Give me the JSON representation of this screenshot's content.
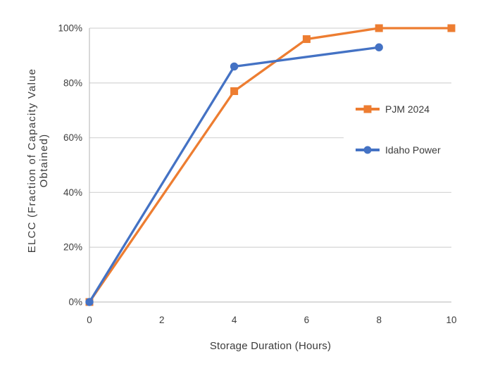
{
  "chart_data": {
    "type": "line",
    "title": "",
    "xlabel": "Storage Duration (Hours)",
    "ylabel": "ELCC (Fraction of Capacity Value Obtained)",
    "ylabel_lines": [
      "ELCC (Fraction of Capacity Value",
      "Obtained)"
    ],
    "xlim": [
      0,
      10
    ],
    "ylim": [
      0,
      100
    ],
    "y_unit": "%",
    "grid": "horizontal-only",
    "legend_position": "inside-right",
    "x_ticks": [
      {
        "value": 0,
        "label": "0"
      },
      {
        "value": 2,
        "label": "2"
      },
      {
        "value": 4,
        "label": "4"
      },
      {
        "value": 6,
        "label": "6"
      },
      {
        "value": 8,
        "label": "8"
      },
      {
        "value": 10,
        "label": "10"
      }
    ],
    "y_ticks": [
      {
        "value": 0,
        "label": "0%"
      },
      {
        "value": 20,
        "label": "20%"
      },
      {
        "value": 40,
        "label": "40%"
      },
      {
        "value": 60,
        "label": "60%"
      },
      {
        "value": 80,
        "label": "80%"
      },
      {
        "value": 100,
        "label": "100%"
      }
    ],
    "series": [
      {
        "name": "PJM 2024",
        "color": "#ED7D31",
        "marker": "square",
        "points": [
          {
            "x": 0,
            "y": 0
          },
          {
            "x": 4,
            "y": 77
          },
          {
            "x": 6,
            "y": 96
          },
          {
            "x": 8,
            "y": 100
          },
          {
            "x": 10,
            "y": 100
          }
        ]
      },
      {
        "name": "Idaho Power",
        "color": "#4472C4",
        "marker": "circle",
        "points": [
          {
            "x": 0,
            "y": 0
          },
          {
            "x": 4,
            "y": 86
          },
          {
            "x": 8,
            "y": 93
          }
        ]
      }
    ]
  }
}
